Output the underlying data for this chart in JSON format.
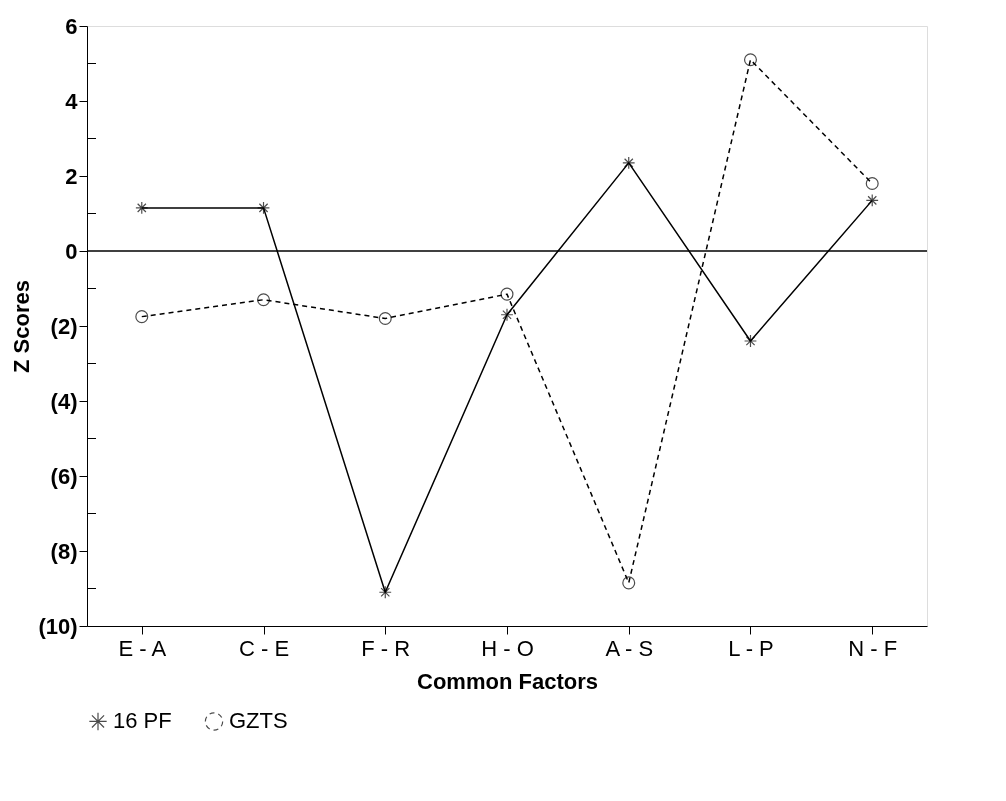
{
  "chart_data": {
    "type": "line",
    "xlabel": "Common Factors",
    "ylabel": "Z Scores",
    "categories": [
      "E - A",
      "C - E",
      "F - R",
      "H - O",
      "A - S",
      "L - P",
      "N - F"
    ],
    "series": [
      {
        "name": "16 PF",
        "color": "#000000",
        "line_style": "solid",
        "marker": "cross",
        "values": [
          1.15,
          1.15,
          -9.1,
          -1.7,
          2.35,
          -2.4,
          1.35
        ]
      },
      {
        "name": "GZTS",
        "color": "#000000",
        "line_style": "dashed",
        "marker": "circle",
        "values": [
          -1.75,
          -1.3,
          -1.8,
          -1.15,
          -8.85,
          5.1,
          1.8
        ]
      }
    ],
    "ylim": [
      -10,
      6
    ],
    "yticks": [
      {
        "value": -10,
        "label": "(10)"
      },
      {
        "value": -9,
        "label": null
      },
      {
        "value": -8,
        "label": "(8)"
      },
      {
        "value": -7,
        "label": null
      },
      {
        "value": -6,
        "label": "(6)"
      },
      {
        "value": -5,
        "label": null
      },
      {
        "value": -4,
        "label": "(4)"
      },
      {
        "value": -3,
        "label": null
      },
      {
        "value": -2,
        "label": "(2)"
      },
      {
        "value": -1,
        "label": null
      },
      0,
      {
        "value": 1,
        "label": null
      },
      2,
      {
        "value": 3,
        "label": null
      },
      4,
      {
        "value": 5,
        "label": null
      },
      6
    ],
    "ref_lines": [
      {
        "axis": "y",
        "value": 0,
        "label": null,
        "color": "#000000",
        "line_style": "solid"
      }
    ],
    "grid": false,
    "legend": "bottom"
  }
}
